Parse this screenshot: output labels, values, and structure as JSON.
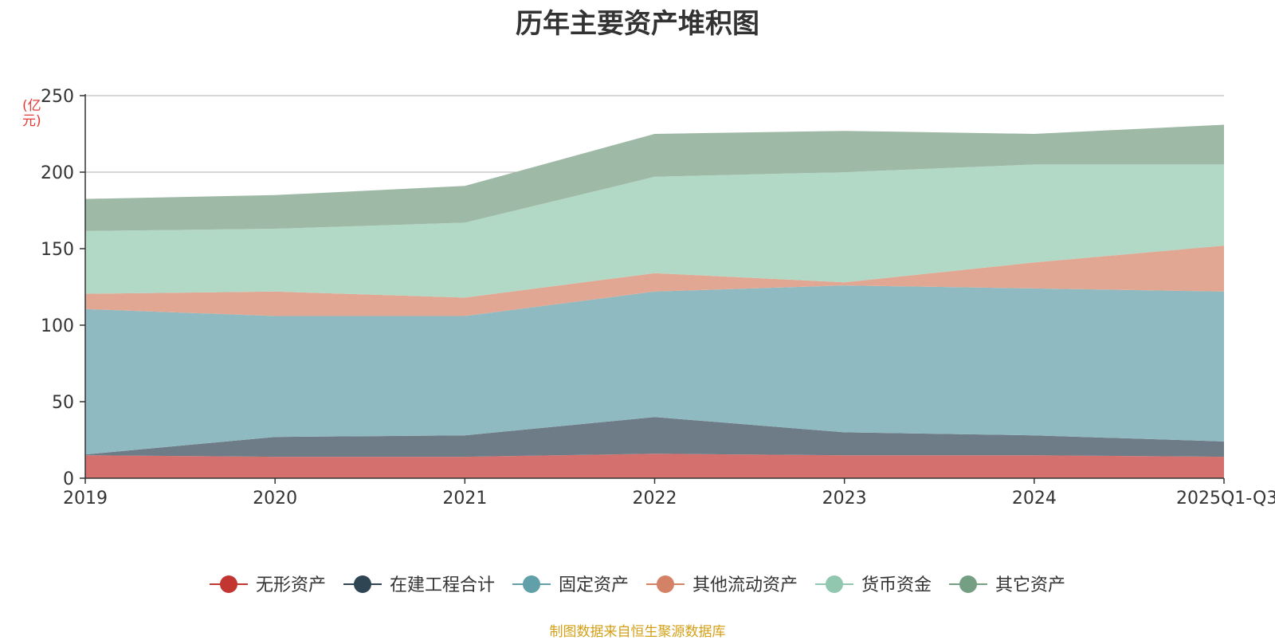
{
  "source_note": "制图数据来自恒生聚源数据库",
  "colors": {
    "title": "#333333",
    "axis": "#333333",
    "grid": "#d9d9d9",
    "ylabel": "#e53935",
    "source": "#d4a017"
  },
  "chart_data": {
    "type": "area",
    "stacked": true,
    "title": "历年主要资产堆积图",
    "ylabel": "(亿元)",
    "xlabel": "",
    "categories": [
      "2019",
      "2020",
      "2021",
      "2022",
      "2023",
      "2024",
      "2025Q1-Q3"
    ],
    "ylim": [
      0,
      250
    ],
    "yticks": [
      0,
      50,
      100,
      150,
      200,
      250
    ],
    "grid": true,
    "legend_position": "bottom",
    "series": [
      {
        "name": "无形资产",
        "color": "#c23531",
        "fill": "#d4716f",
        "values": [
          15,
          14,
          14,
          16,
          15,
          15,
          14
        ]
      },
      {
        "name": "在建工程合计",
        "color": "#2f4554",
        "fill": "#6e7c87",
        "values": [
          0.5,
          13,
          14,
          24,
          15,
          13,
          10
        ]
      },
      {
        "name": "固定资产",
        "color": "#61a0a8",
        "fill": "#90bac1",
        "values": [
          95,
          79,
          78,
          82,
          96,
          96,
          98
        ]
      },
      {
        "name": "其他流动资产",
        "color": "#d48265",
        "fill": "#e1a792",
        "values": [
          10,
          16,
          12,
          12,
          2,
          17,
          30
        ]
      },
      {
        "name": "货币资金",
        "color": "#91c7ae",
        "fill": "#b2d8c6",
        "values": [
          41,
          41,
          49,
          63,
          72,
          64,
          53
        ]
      },
      {
        "name": "其它资产",
        "color": "#749f83",
        "fill": "#9eb9a6",
        "values": [
          21,
          22,
          24,
          28,
          27,
          20,
          26
        ]
      }
    ]
  }
}
